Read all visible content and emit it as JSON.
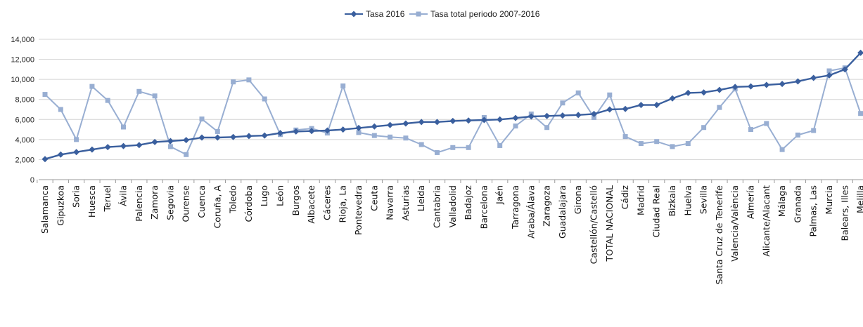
{
  "chart_data": {
    "type": "line",
    "title": "",
    "xlabel": "",
    "ylabel": "",
    "ylim": [
      0,
      14000
    ],
    "y_ticks": [
      "0",
      "2,000",
      "4,000",
      "6,000",
      "8,000",
      "10,000",
      "12,000",
      "14,000"
    ],
    "grid": true,
    "legend_position": "top-center",
    "categories": [
      "Salamanca",
      "Gipuzkoa",
      "Soria",
      "Huesca",
      "Teruel",
      "Ávila",
      "Palencia",
      "Zamora",
      "Segovia",
      "Ourense",
      "Cuenca",
      "Coruña, A",
      "Toledo",
      "Córdoba",
      "Lugo",
      "León",
      "Burgos",
      "Albacete",
      "Cáceres",
      "Rioja, La",
      "Pontevedra",
      "Ceuta",
      "Navarra",
      "Asturias",
      "Lleida",
      "Cantabria",
      "Valladolid",
      "Badajoz",
      "Barcelona",
      "Jaén",
      "Tarragona",
      "Araba/Álava",
      "Zaragoza",
      "Guadalajara",
      "Girona",
      "Castellón/Castelló",
      "TOTAL NACIONAL",
      "Cádiz",
      "Madrid",
      "Ciudad Real",
      "Bizkaia",
      "Huelva",
      "Sevilla",
      "Santa Cruz de Tenerife",
      "Valencia/València",
      "Almería",
      "Alicante/Alacant",
      "Málaga",
      "Granada",
      "Palmas, Las",
      "Murcia",
      "Balears, Illes",
      "Melilla"
    ],
    "series": [
      {
        "name": "Tasa 2016",
        "color": "#3a5f9e",
        "marker": "diamond",
        "values": [
          2050,
          2500,
          2750,
          3000,
          3250,
          3350,
          3450,
          3750,
          3850,
          3950,
          4200,
          4200,
          4250,
          4350,
          4400,
          4650,
          4800,
          4850,
          4900,
          5000,
          5150,
          5300,
          5450,
          5600,
          5750,
          5750,
          5850,
          5900,
          5950,
          6000,
          6150,
          6300,
          6350,
          6400,
          6450,
          6550,
          7000,
          7050,
          7450,
          7450,
          8100,
          8650,
          8700,
          8950,
          9250,
          9300,
          9450,
          9550,
          9800,
          10150,
          10400,
          11000,
          12650
        ]
      },
      {
        "name": "Tasa total periodo 2007-2016",
        "color": "#98aed2",
        "marker": "square",
        "values": [
          8500,
          7000,
          4000,
          9300,
          7900,
          5250,
          8800,
          8350,
          3300,
          2500,
          6050,
          4800,
          9750,
          9950,
          8050,
          4500,
          4950,
          5100,
          4650,
          9350,
          4700,
          4400,
          4250,
          4150,
          3500,
          2700,
          3200,
          3200,
          6200,
          3400,
          5350,
          6550,
          5200,
          7650,
          8650,
          6200,
          8450,
          4300,
          3600,
          3800,
          3300,
          3600,
          5200,
          7200,
          9050,
          5000,
          5600,
          3000,
          4450,
          4900,
          10850,
          11150,
          6600
        ]
      }
    ]
  }
}
